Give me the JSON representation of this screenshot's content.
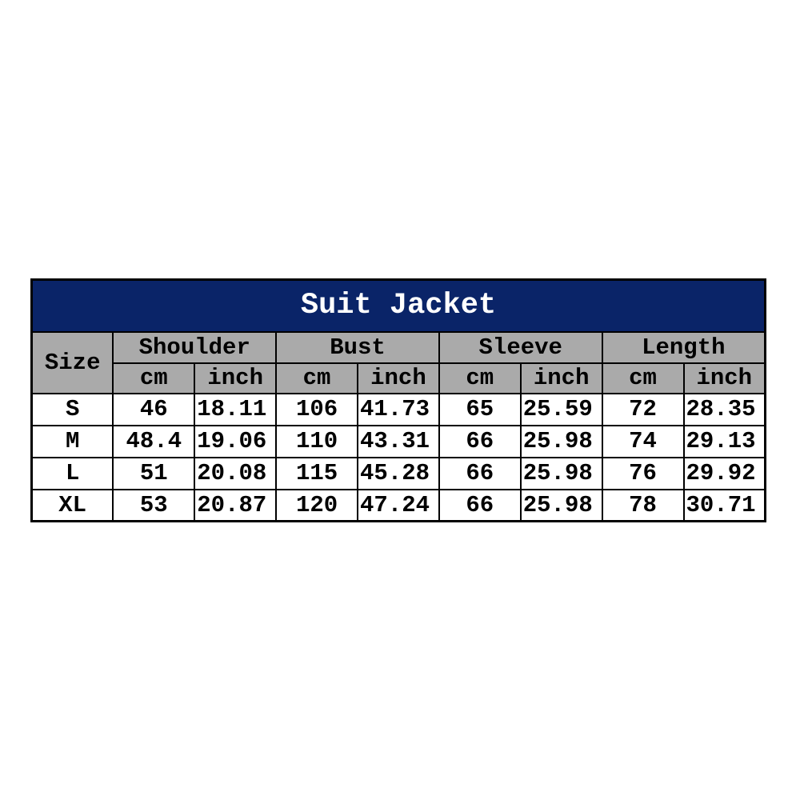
{
  "chart_data": {
    "type": "table",
    "title": "Suit Jacket",
    "size_label": "Size",
    "groups": [
      {
        "label": "Shoulder"
      },
      {
        "label": "Bust"
      },
      {
        "label": "Sleeve"
      },
      {
        "label": "Length"
      }
    ],
    "units": {
      "cm": "cm",
      "inch": "inch"
    },
    "columns": [
      "Size",
      "Shoulder cm",
      "Shoulder inch",
      "Bust cm",
      "Bust inch",
      "Sleeve cm",
      "Sleeve inch",
      "Length cm",
      "Length inch"
    ],
    "rows": [
      {
        "size": "S",
        "shoulder_cm": 46,
        "shoulder_inch": 18.11,
        "bust_cm": 106,
        "bust_inch": 41.73,
        "sleeve_cm": 65,
        "sleeve_inch": 25.59,
        "length_cm": 72,
        "length_inch": 28.35
      },
      {
        "size": "M",
        "shoulder_cm": 48.4,
        "shoulder_inch": 19.06,
        "bust_cm": 110,
        "bust_inch": 43.31,
        "sleeve_cm": 66,
        "sleeve_inch": 25.98,
        "length_cm": 74,
        "length_inch": 29.13
      },
      {
        "size": "L",
        "shoulder_cm": 51,
        "shoulder_inch": 20.08,
        "bust_cm": 115,
        "bust_inch": 45.28,
        "sleeve_cm": 66,
        "sleeve_inch": 25.98,
        "length_cm": 76,
        "length_inch": 29.92
      },
      {
        "size": "XL",
        "shoulder_cm": 53,
        "shoulder_inch": 20.87,
        "bust_cm": 120,
        "bust_inch": 47.24,
        "sleeve_cm": 66,
        "sleeve_inch": 25.98,
        "length_cm": 78,
        "length_inch": 30.71
      }
    ],
    "layout": {
      "legend": "none",
      "grid": "table-borders"
    }
  },
  "colors": {
    "title_bg": "#0a2468",
    "title_text": "#ffffff",
    "header_bg": "#aaaaaa",
    "cell_bg": "#ffffff",
    "border": "#000000"
  }
}
